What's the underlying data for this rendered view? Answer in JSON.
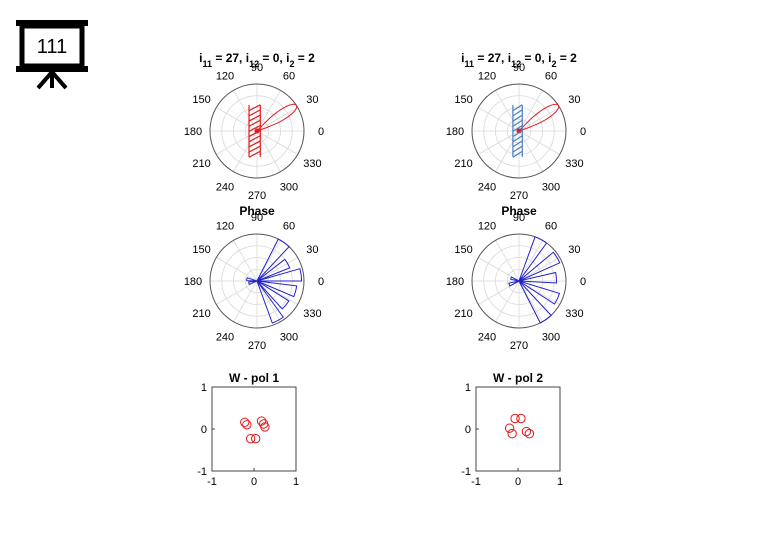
{
  "badge": {
    "icon": "presentation-board-icon",
    "label": "111"
  },
  "chart_data": [
    {
      "type": "polar",
      "title": "i11 = 27, i12 = 0, i2 = 2",
      "title_parts": [
        [
          "i",
          "11",
          " = 27, "
        ],
        [
          "i",
          "12",
          " = 0, "
        ],
        [
          "i",
          "2",
          " = 2"
        ]
      ],
      "angle_tick_labels": [
        "0",
        "30",
        "60",
        "90",
        "120",
        "150",
        "180",
        "210",
        "240",
        "270",
        "300",
        "330"
      ],
      "rlim": [
        0,
        1
      ],
      "series": [
        {
          "style": "beam",
          "color": "#e31a1c",
          "direction_deg": 33,
          "length": 1.0,
          "width_deg": 14
        },
        {
          "style": "hatch",
          "color": "#e31a1c",
          "center_x": -0.05,
          "half_width": 0.12,
          "y_range": [
            -0.55,
            0.55
          ],
          "count": 10
        }
      ],
      "grid": true
    },
    {
      "type": "polar",
      "title": "i11 = 27, i12 = 0, i2 = 2",
      "title_parts": [
        [
          "i",
          "11",
          " = 27, "
        ],
        [
          "i",
          "12",
          " = 0, "
        ],
        [
          "i",
          "2",
          " = 2"
        ]
      ],
      "angle_tick_labels": [
        "0",
        "30",
        "60",
        "90",
        "120",
        "150",
        "180",
        "210",
        "240",
        "270",
        "300",
        "330"
      ],
      "rlim": [
        0,
        1
      ],
      "series": [
        {
          "style": "beam",
          "color": "#e31a1c",
          "direction_deg": 33,
          "length": 1.0,
          "width_deg": 14
        },
        {
          "style": "hatch",
          "color": "#4a7fc1",
          "center_x": -0.03,
          "half_width": 0.1,
          "y_range": [
            -0.55,
            0.55
          ],
          "count": 10
        }
      ],
      "grid": true
    },
    {
      "type": "polar",
      "title": "Phase",
      "angle_tick_labels": [
        "0",
        "30",
        "60",
        "90",
        "120",
        "150",
        "180",
        "210",
        "240",
        "270",
        "300",
        "330"
      ],
      "rlim": [
        0,
        1
      ],
      "series": [
        {
          "style": "compass",
          "color": "#2222cc",
          "wedges": [
            {
              "angle_deg": 55,
              "r": 1.0
            },
            {
              "angle_deg": 30,
              "r": 0.75
            },
            {
              "angle_deg": 8,
              "r": 0.95
            },
            {
              "angle_deg": -15,
              "r": 0.85
            },
            {
              "angle_deg": -40,
              "r": 0.8
            },
            {
              "angle_deg": -62,
              "r": 0.95
            },
            {
              "angle_deg": 170,
              "r": 0.22
            },
            {
              "angle_deg": 195,
              "r": 0.18
            }
          ]
        }
      ],
      "grid": true
    },
    {
      "type": "polar",
      "title": "Phase",
      "angle_tick_labels": [
        "0",
        "30",
        "60",
        "90",
        "120",
        "150",
        "180",
        "210",
        "240",
        "270",
        "300",
        "330"
      ],
      "rlim": [
        0,
        1
      ],
      "series": [
        {
          "style": "compass",
          "color": "#2222cc",
          "wedges": [
            {
              "angle_deg": 62,
              "r": 1.0
            },
            {
              "angle_deg": 32,
              "r": 0.95
            },
            {
              "angle_deg": 5,
              "r": 0.8
            },
            {
              "angle_deg": -25,
              "r": 0.9
            },
            {
              "angle_deg": -55,
              "r": 1.0
            },
            {
              "angle_deg": 160,
              "r": 0.18
            },
            {
              "angle_deg": 200,
              "r": 0.22
            }
          ]
        }
      ],
      "grid": true
    },
    {
      "type": "scatter",
      "title": "W - pol 1",
      "xlim": [
        -1,
        1
      ],
      "ylim": [
        -1,
        1
      ],
      "x_ticks": [
        "-1",
        "0",
        "1"
      ],
      "y_ticks": [
        "-1",
        "0",
        "1"
      ],
      "color": "#e31a1c",
      "marker": "circle",
      "points": [
        [
          -0.22,
          0.16
        ],
        [
          -0.17,
          0.1
        ],
        [
          0.18,
          0.19
        ],
        [
          0.23,
          0.12
        ],
        [
          0.26,
          0.05
        ],
        [
          -0.08,
          -0.23
        ],
        [
          0.04,
          -0.23
        ]
      ]
    },
    {
      "type": "scatter",
      "title": "W - pol 2",
      "xlim": [
        -1,
        1
      ],
      "ylim": [
        -1,
        1
      ],
      "x_ticks": [
        "-1",
        "0",
        "1"
      ],
      "y_ticks": [
        "-1",
        "0",
        "1"
      ],
      "color": "#e31a1c",
      "marker": "circle",
      "points": [
        [
          -0.07,
          0.25
        ],
        [
          0.07,
          0.25
        ],
        [
          -0.2,
          0.02
        ],
        [
          -0.14,
          -0.11
        ],
        [
          0.2,
          -0.06
        ],
        [
          0.27,
          -0.11
        ]
      ]
    }
  ]
}
